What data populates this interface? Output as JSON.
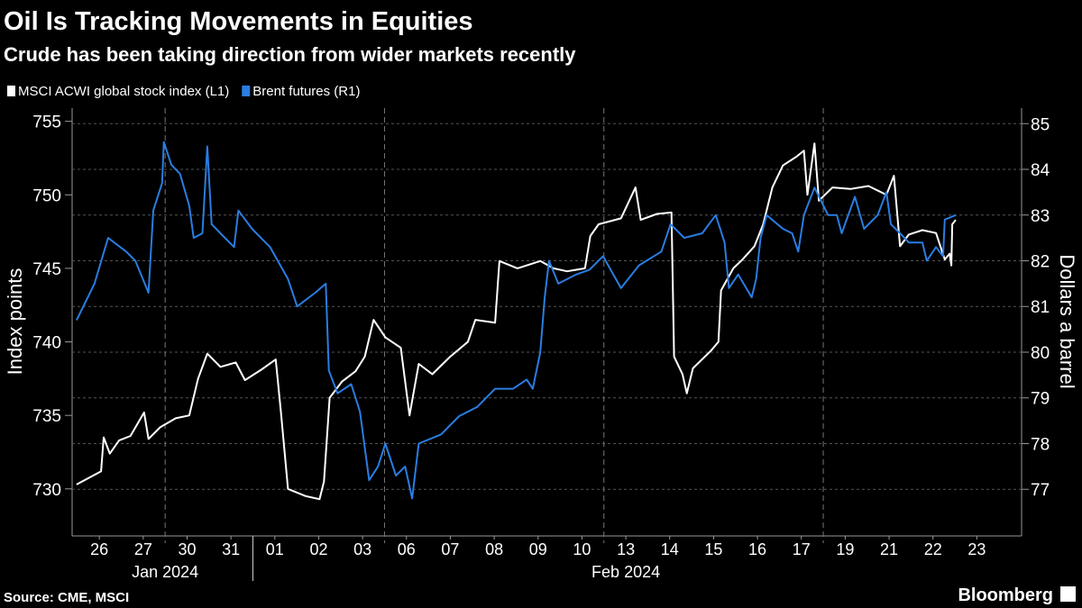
{
  "chart_data": {
    "type": "line",
    "title": "Oil Is Tracking Movements in Equities",
    "subtitle": "Crude has been taking direction from wider markets recently",
    "y_label": "Index points",
    "y2_label": "Dollars a barrel",
    "source": "Source: CME, MSCI",
    "brand": "Bloomberg",
    "xlim": [
      -0.12,
      21.52
    ],
    "xticks": [
      {
        "value": 0.5,
        "label": "26"
      },
      {
        "value": 1.5,
        "label": "27"
      },
      {
        "value": 2.5,
        "label": "30"
      },
      {
        "value": 3.5,
        "label": "31"
      },
      {
        "value": 4.5,
        "label": "01"
      },
      {
        "value": 5.5,
        "label": "02"
      },
      {
        "value": 6.5,
        "label": "03"
      },
      {
        "value": 7.5,
        "label": "06"
      },
      {
        "value": 8.5,
        "label": "07"
      },
      {
        "value": 9.5,
        "label": "08"
      },
      {
        "value": 10.5,
        "label": "09"
      },
      {
        "value": 11.5,
        "label": "10"
      },
      {
        "value": 12.5,
        "label": "13"
      },
      {
        "value": 13.5,
        "label": "14"
      },
      {
        "value": 14.5,
        "label": "15"
      },
      {
        "value": 15.5,
        "label": "16"
      },
      {
        "value": 16.5,
        "label": "17"
      },
      {
        "value": 17.5,
        "label": "19"
      },
      {
        "value": 18.5,
        "label": "21"
      },
      {
        "value": 19.5,
        "label": "22"
      },
      {
        "value": 20.5,
        "label": "23"
      }
    ],
    "x_groups": [
      {
        "label": "Jan 2024",
        "start": 0,
        "end": 4
      },
      {
        "label": "Feb 2024",
        "start": 4,
        "end": 21
      }
    ],
    "xgrid": [
      2,
      7,
      12,
      17
    ],
    "ylim": [
      726.8,
      755.9
    ],
    "yticks": [
      730,
      735,
      740,
      745,
      750,
      755
    ],
    "y2lim": [
      75.98,
      85.34
    ],
    "y2ticks": [
      77,
      78,
      79,
      80,
      81,
      82,
      83,
      84,
      85
    ],
    "grid": true,
    "series": [
      {
        "name": "MSCI ACWI global stock index (L1)",
        "color": "#ffffff",
        "axis": "y",
        "x": [
          -0.02,
          0.29,
          0.54,
          0.6,
          0.74,
          0.95,
          1.21,
          1.52,
          1.62,
          1.89,
          2.24,
          2.55,
          2.75,
          2.96,
          3.26,
          3.61,
          3.82,
          4.19,
          4.52,
          4.64,
          4.8,
          5.21,
          5.52,
          5.62,
          5.75,
          6.03,
          6.34,
          6.55,
          6.75,
          7.02,
          7.37,
          7.57,
          7.78,
          8.09,
          8.5,
          8.9,
          9.07,
          9.52,
          9.62,
          10.03,
          10.55,
          10.85,
          11.16,
          11.57,
          11.69,
          11.88,
          12.39,
          12.72,
          12.84,
          13.21,
          13.54,
          13.6,
          13.79,
          13.89,
          14.03,
          14.44,
          14.61,
          14.67,
          14.95,
          15.16,
          15.43,
          15.63,
          15.84,
          16.08,
          16.39,
          16.56,
          16.64,
          16.8,
          16.9,
          17.21,
          17.62,
          18.03,
          18.44,
          18.61,
          18.75,
          18.95,
          19.26,
          19.57,
          19.77,
          19.88,
          19.92,
          19.94,
          20.02
        ],
        "values": [
          730.3,
          730.8,
          731.2,
          733.5,
          732.4,
          733.3,
          733.6,
          735.2,
          733.4,
          734.2,
          734.8,
          735.0,
          737.5,
          739.2,
          738.3,
          738.6,
          737.4,
          738.1,
          738.8,
          735.2,
          730.0,
          729.5,
          729.3,
          730.5,
          736.2,
          737.3,
          738.0,
          739.0,
          741.5,
          740.3,
          739.6,
          735.0,
          738.5,
          737.8,
          739.0,
          740.0,
          741.5,
          741.3,
          745.5,
          745.0,
          745.5,
          745.0,
          744.8,
          745.0,
          747.2,
          748.0,
          748.4,
          750.5,
          748.3,
          748.7,
          748.8,
          739.0,
          737.8,
          736.5,
          738.2,
          739.4,
          740.0,
          743.5,
          745.0,
          745.6,
          746.5,
          748.0,
          750.5,
          752.0,
          752.6,
          753.0,
          750.0,
          753.5,
          749.6,
          750.5,
          750.4,
          750.6,
          750.0,
          751.3,
          746.5,
          747.3,
          747.6,
          747.4,
          745.6,
          746.0,
          745.2,
          748.0,
          748.3
        ]
      },
      {
        "name": "Brent futures (R1)",
        "color": "#2a7de1",
        "axis": "y2",
        "x": [
          -0.02,
          0.39,
          0.7,
          1.11,
          1.32,
          1.62,
          1.73,
          1.93,
          1.97,
          2.14,
          2.34,
          2.55,
          2.65,
          2.85,
          2.96,
          3.06,
          3.26,
          3.57,
          3.67,
          3.98,
          4.39,
          4.8,
          5.01,
          5.42,
          5.66,
          5.73,
          5.93,
          6.24,
          6.44,
          6.65,
          6.85,
          7.02,
          7.26,
          7.47,
          7.63,
          7.78,
          8.29,
          8.7,
          9.11,
          9.52,
          9.93,
          10.24,
          10.38,
          10.55,
          10.65,
          10.75,
          10.96,
          11.37,
          11.67,
          11.98,
          12.39,
          12.8,
          13.31,
          13.52,
          13.83,
          14.24,
          14.55,
          14.75,
          14.85,
          15.06,
          15.37,
          15.47,
          15.57,
          15.71,
          16.08,
          16.29,
          16.43,
          16.56,
          16.8,
          17.11,
          17.31,
          17.42,
          17.72,
          17.93,
          18.24,
          18.44,
          18.54,
          18.75,
          18.95,
          19.26,
          19.36,
          19.57,
          19.73,
          19.77,
          20.02
        ],
        "values": [
          80.7,
          81.5,
          82.5,
          82.2,
          82.0,
          81.3,
          83.1,
          83.7,
          84.6,
          84.1,
          83.9,
          83.2,
          82.5,
          82.6,
          84.5,
          82.8,
          82.6,
          82.3,
          83.1,
          82.7,
          82.3,
          81.6,
          81.0,
          81.3,
          81.5,
          79.6,
          79.1,
          79.3,
          78.7,
          77.2,
          77.5,
          78.0,
          77.3,
          77.5,
          76.8,
          78.0,
          78.2,
          78.6,
          78.8,
          79.2,
          79.2,
          79.4,
          79.2,
          80.0,
          81.2,
          82.0,
          81.5,
          81.7,
          81.8,
          82.1,
          81.4,
          81.9,
          82.2,
          82.8,
          82.5,
          82.6,
          83.0,
          82.4,
          81.4,
          81.7,
          81.2,
          81.6,
          82.5,
          83.0,
          82.7,
          82.6,
          82.2,
          83.0,
          83.6,
          83.0,
          83.0,
          82.6,
          83.4,
          82.7,
          83.0,
          83.5,
          82.8,
          82.6,
          82.4,
          82.4,
          82.0,
          82.3,
          82.1,
          82.9,
          83.0
        ]
      }
    ]
  }
}
